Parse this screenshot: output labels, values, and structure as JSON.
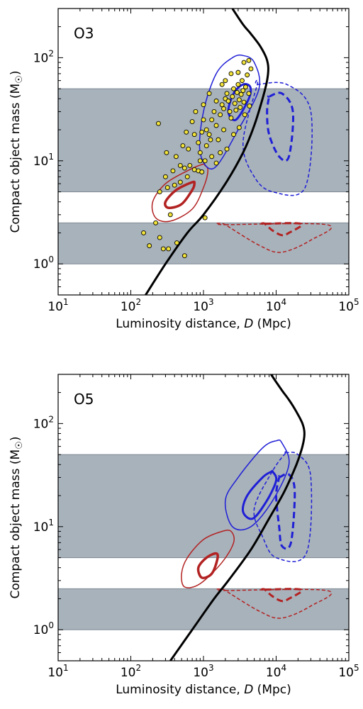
{
  "chart_data": [
    {
      "type": "scatter",
      "panel_label": "O3",
      "xlabel_prefix": "Luminosity distance, ",
      "xlabel_var": "D",
      "xlabel_unit": " (Mpc)",
      "ylabel": "Compact object mass (M",
      "ylabel_sym": "☉",
      "xscale": "log",
      "yscale": "log",
      "xlim": [
        10,
        100000
      ],
      "ylim": [
        0.5,
        300
      ],
      "xticks": [
        {
          "base": "10",
          "exp": "1",
          "v": 10
        },
        {
          "base": "10",
          "exp": "2",
          "v": 100
        },
        {
          "base": "10",
          "exp": "3",
          "v": 1000
        },
        {
          "base": "10",
          "exp": "4",
          "v": 10000
        },
        {
          "base": "10",
          "exp": "5",
          "v": 100000
        }
      ],
      "yticks": [
        {
          "base": "10",
          "exp": "0",
          "v": 1
        },
        {
          "base": "10",
          "exp": "1",
          "v": 10
        },
        {
          "base": "10",
          "exp": "2",
          "v": 100
        }
      ],
      "bands": [
        {
          "y0": 1.0,
          "y1": 2.5,
          "color": "#a8b2bb"
        },
        {
          "y0": 5.0,
          "y1": 50.0,
          "color": "#a8b2bb"
        }
      ],
      "horizon_curve": [
        [
          160,
          0.5
        ],
        [
          300,
          1.0
        ],
        [
          600,
          2.0
        ],
        [
          1000,
          3.0
        ],
        [
          2000,
          6.0
        ],
        [
          3500,
          12
        ],
        [
          5000,
          22
        ],
        [
          6500,
          40
        ],
        [
          7500,
          60
        ],
        [
          7800,
          80
        ],
        [
          7300,
          100
        ],
        [
          6000,
          130
        ],
        [
          4500,
          170
        ],
        [
          3500,
          210
        ],
        [
          2500,
          300
        ]
      ],
      "contours": [
        {
          "color": "#b22222",
          "style": "solid",
          "width": 1.5,
          "points": [
            [
              1050,
              9.0
            ],
            [
              950,
              9.2
            ],
            [
              600,
              8.0
            ],
            [
              300,
              6.0
            ],
            [
              200,
              4.0
            ],
            [
              220,
              2.8
            ],
            [
              350,
              2.6
            ],
            [
              700,
              3.4
            ],
            [
              1000,
              5.5
            ],
            [
              1150,
              8.0
            ]
          ]
        },
        {
          "color": "#b22222",
          "style": "solid",
          "width": 3.5,
          "points": [
            [
              700,
              6.2
            ],
            [
              420,
              5.2
            ],
            [
              300,
              4.0
            ],
            [
              330,
              3.5
            ],
            [
              500,
              3.8
            ],
            [
              700,
              5.2
            ],
            [
              750,
              6.0
            ]
          ]
        },
        {
          "color": "#b22222",
          "style": "dashed",
          "width": 1.5,
          "points": [
            [
              2000,
              2.4
            ],
            [
              50000,
              2.4
            ],
            [
              30000,
              1.7
            ],
            [
              12000,
              1.3
            ],
            [
              6000,
              1.5
            ],
            [
              2000,
              2.4
            ]
          ]
        },
        {
          "color": "#b22222",
          "style": "dashed",
          "width": 3.0,
          "points": [
            [
              7000,
              2.45
            ],
            [
              22000,
              2.45
            ],
            [
              15000,
              2.0
            ],
            [
              12000,
              1.9
            ],
            [
              9000,
              2.1
            ],
            [
              7000,
              2.45
            ]
          ]
        },
        {
          "color": "#1f1fd6",
          "style": "solid",
          "width": 1.5,
          "points": [
            [
              2500,
              100
            ],
            [
              1500,
              70
            ],
            [
              1000,
              30
            ],
            [
              900,
              12
            ],
            [
              1400,
              8.5
            ],
            [
              3000,
              20
            ],
            [
              5800,
              50
            ],
            [
              5000,
              90
            ],
            [
              3500,
              105
            ]
          ]
        },
        {
          "color": "#1f1fd6",
          "style": "solid",
          "width": 3.0,
          "points": [
            [
              3500,
              55
            ],
            [
              2600,
              45
            ],
            [
              2200,
              30
            ],
            [
              2800,
              25
            ],
            [
              4200,
              40
            ],
            [
              4400,
              52
            ]
          ]
        },
        {
          "color": "#1f1fd6",
          "style": "dashed",
          "width": 1.5,
          "points": [
            [
              5500,
              55
            ],
            [
              14000,
              55
            ],
            [
              30000,
              30
            ],
            [
              25000,
              5.5
            ],
            [
              9000,
              5.0
            ],
            [
              5000,
              7.0
            ],
            [
              3500,
              15
            ],
            [
              5500,
              55
            ]
          ]
        },
        {
          "color": "#1f1fd6",
          "style": "dashed",
          "width": 3.0,
          "points": [
            [
              8000,
              42
            ],
            [
              12000,
              45
            ],
            [
              17000,
              30
            ],
            [
              15000,
              11
            ],
            [
              11000,
              11
            ],
            [
              8000,
              18
            ],
            [
              7500,
              30
            ],
            [
              8000,
              42
            ]
          ]
        }
      ],
      "points": [
        [
          150,
          2.0
        ],
        [
          180,
          1.5
        ],
        [
          220,
          2.5
        ],
        [
          250,
          1.8
        ],
        [
          280,
          1.4
        ],
        [
          330,
          1.4
        ],
        [
          430,
          1.6
        ],
        [
          550,
          1.2
        ],
        [
          350,
          3.0
        ],
        [
          250,
          5.0
        ],
        [
          320,
          5.5
        ],
        [
          400,
          5.8
        ],
        [
          480,
          6.2
        ],
        [
          600,
          7.0
        ],
        [
          300,
          7.0
        ],
        [
          380,
          8.0
        ],
        [
          480,
          9.0
        ],
        [
          550,
          8.5
        ],
        [
          650,
          9.0
        ],
        [
          750,
          8.2
        ],
        [
          850,
          8.0
        ],
        [
          950,
          7.8
        ],
        [
          1050,
          2.8
        ],
        [
          240,
          23
        ],
        [
          310,
          12
        ],
        [
          420,
          11
        ],
        [
          520,
          14
        ],
        [
          580,
          19
        ],
        [
          620,
          13
        ],
        [
          700,
          24
        ],
        [
          780,
          30
        ],
        [
          850,
          15
        ],
        [
          900,
          12
        ],
        [
          950,
          19
        ],
        [
          1000,
          35
        ],
        [
          1100,
          20
        ],
        [
          1200,
          18
        ],
        [
          1300,
          25
        ],
        [
          1400,
          30
        ],
        [
          1500,
          22
        ],
        [
          1600,
          16
        ],
        [
          1700,
          28
        ],
        [
          1800,
          35
        ],
        [
          1900,
          32
        ],
        [
          2000,
          40
        ],
        [
          2100,
          45
        ],
        [
          2200,
          38
        ],
        [
          2300,
          30
        ],
        [
          2400,
          26
        ],
        [
          2500,
          42
        ],
        [
          2600,
          50
        ],
        [
          2700,
          36
        ],
        [
          2800,
          31
        ],
        [
          2900,
          46
        ],
        [
          3000,
          55
        ],
        [
          3100,
          39
        ],
        [
          3200,
          33
        ],
        [
          3300,
          44
        ],
        [
          3400,
          60
        ],
        [
          3500,
          48
        ],
        [
          3600,
          37
        ],
        [
          3800,
          52
        ],
        [
          4000,
          68
        ],
        [
          4200,
          45
        ],
        [
          4500,
          78
        ],
        [
          1200,
          45
        ],
        [
          1500,
          38
        ],
        [
          1800,
          55
        ],
        [
          2000,
          60
        ],
        [
          2400,
          70
        ],
        [
          3000,
          72
        ],
        [
          3600,
          90
        ],
        [
          4200,
          94
        ],
        [
          1000,
          25
        ],
        [
          1100,
          14
        ],
        [
          1300,
          11
        ],
        [
          900,
          10
        ],
        [
          1500,
          9.5
        ],
        [
          2100,
          13
        ],
        [
          2600,
          18
        ],
        [
          3100,
          21
        ],
        [
          3700,
          28
        ],
        [
          4300,
          34
        ],
        [
          750,
          18
        ],
        [
          1050,
          10
        ],
        [
          1250,
          16
        ],
        [
          1700,
          12
        ],
        [
          1900,
          20
        ]
      ]
    },
    {
      "type": "scatter",
      "panel_label": "O5",
      "xlabel_prefix": "Luminosity distance, ",
      "xlabel_var": "D",
      "xlabel_unit": " (Mpc)",
      "ylabel": "Compact object mass (M",
      "ylabel_sym": "☉",
      "xscale": "log",
      "yscale": "log",
      "xlim": [
        10,
        100000
      ],
      "ylim": [
        0.5,
        300
      ],
      "xticks": [
        {
          "base": "10",
          "exp": "1",
          "v": 10
        },
        {
          "base": "10",
          "exp": "2",
          "v": 100
        },
        {
          "base": "10",
          "exp": "3",
          "v": 1000
        },
        {
          "base": "10",
          "exp": "4",
          "v": 10000
        },
        {
          "base": "10",
          "exp": "5",
          "v": 100000
        }
      ],
      "yticks": [
        {
          "base": "10",
          "exp": "0",
          "v": 1
        },
        {
          "base": "10",
          "exp": "1",
          "v": 10
        },
        {
          "base": "10",
          "exp": "2",
          "v": 100
        }
      ],
      "bands": [
        {
          "y0": 1.0,
          "y1": 2.5,
          "color": "#a8b2bb"
        },
        {
          "y0": 5.0,
          "y1": 50.0,
          "color": "#a8b2bb"
        }
      ],
      "horizon_curve": [
        [
          350,
          0.5
        ],
        [
          700,
          1.0
        ],
        [
          1400,
          2.0
        ],
        [
          2200,
          3.0
        ],
        [
          4500,
          6.0
        ],
        [
          8000,
          12
        ],
        [
          13000,
          22
        ],
        [
          19000,
          40
        ],
        [
          23000,
          60
        ],
        [
          24500,
          80
        ],
        [
          23000,
          100
        ],
        [
          19000,
          130
        ],
        [
          15000,
          170
        ],
        [
          12000,
          210
        ],
        [
          8500,
          300
        ]
      ],
      "contours": [
        {
          "color": "#b22222",
          "style": "solid",
          "width": 1.5,
          "points": [
            [
              2400,
              9.0
            ],
            [
              1800,
              9.0
            ],
            [
              1000,
              7.5
            ],
            [
              600,
              5.0
            ],
            [
              500,
              3.5
            ],
            [
              550,
              2.6
            ],
            [
              900,
              2.8
            ],
            [
              1800,
              4.5
            ],
            [
              2600,
              7.0
            ]
          ]
        },
        {
          "color": "#b22222",
          "style": "solid",
          "width": 3.5,
          "points": [
            [
              1500,
              5.5
            ],
            [
              1100,
              5.0
            ],
            [
              850,
              4.0
            ],
            [
              950,
              3.2
            ],
            [
              1300,
              3.5
            ],
            [
              1550,
              4.8
            ]
          ]
        },
        {
          "color": "#b22222",
          "style": "dashed",
          "width": 1.5,
          "points": [
            [
              2000,
              2.4
            ],
            [
              50000,
              2.4
            ],
            [
              30000,
              1.7
            ],
            [
              12000,
              1.3
            ],
            [
              6000,
              1.5
            ],
            [
              2000,
              2.4
            ]
          ]
        },
        {
          "color": "#b22222",
          "style": "dashed",
          "width": 3.0,
          "points": [
            [
              7000,
              2.45
            ],
            [
              22000,
              2.45
            ],
            [
              15000,
              2.0
            ],
            [
              12000,
              1.9
            ],
            [
              9000,
              2.1
            ],
            [
              7000,
              2.45
            ]
          ]
        },
        {
          "color": "#1f1fd6",
          "style": "solid",
          "width": 1.5,
          "points": [
            [
              10000,
              68
            ],
            [
              6500,
              58
            ],
            [
              3000,
              30
            ],
            [
              2000,
              18
            ],
            [
              2500,
              10
            ],
            [
              4500,
              10
            ],
            [
              9000,
              18
            ],
            [
              15000,
              40
            ],
            [
              12000,
              65
            ]
          ]
        },
        {
          "color": "#1f1fd6",
          "style": "solid",
          "width": 3.0,
          "points": [
            [
              8500,
              34
            ],
            [
              6500,
              30
            ],
            [
              4000,
              20
            ],
            [
              3500,
              14
            ],
            [
              4800,
              12
            ],
            [
              7500,
              18
            ],
            [
              10000,
              28
            ],
            [
              9000,
              34
            ]
          ]
        },
        {
          "color": "#1f1fd6",
          "style": "dashed",
          "width": 1.5,
          "points": [
            [
              13500,
              52
            ],
            [
              20000,
              50
            ],
            [
              30000,
              30
            ],
            [
              26000,
              5.5
            ],
            [
              10000,
              5.0
            ],
            [
              6500,
              8.0
            ],
            [
              5000,
              15
            ],
            [
              9000,
              35
            ],
            [
              13500,
              52
            ]
          ]
        },
        {
          "color": "#1f1fd6",
          "style": "dashed",
          "width": 3.0,
          "points": [
            [
              11000,
              30
            ],
            [
              15000,
              32
            ],
            [
              18000,
              22
            ],
            [
              16000,
              7.0
            ],
            [
              12000,
              6.5
            ],
            [
              11000,
              10
            ],
            [
              10000,
              20
            ],
            [
              11000,
              30
            ]
          ]
        }
      ],
      "points": []
    }
  ]
}
